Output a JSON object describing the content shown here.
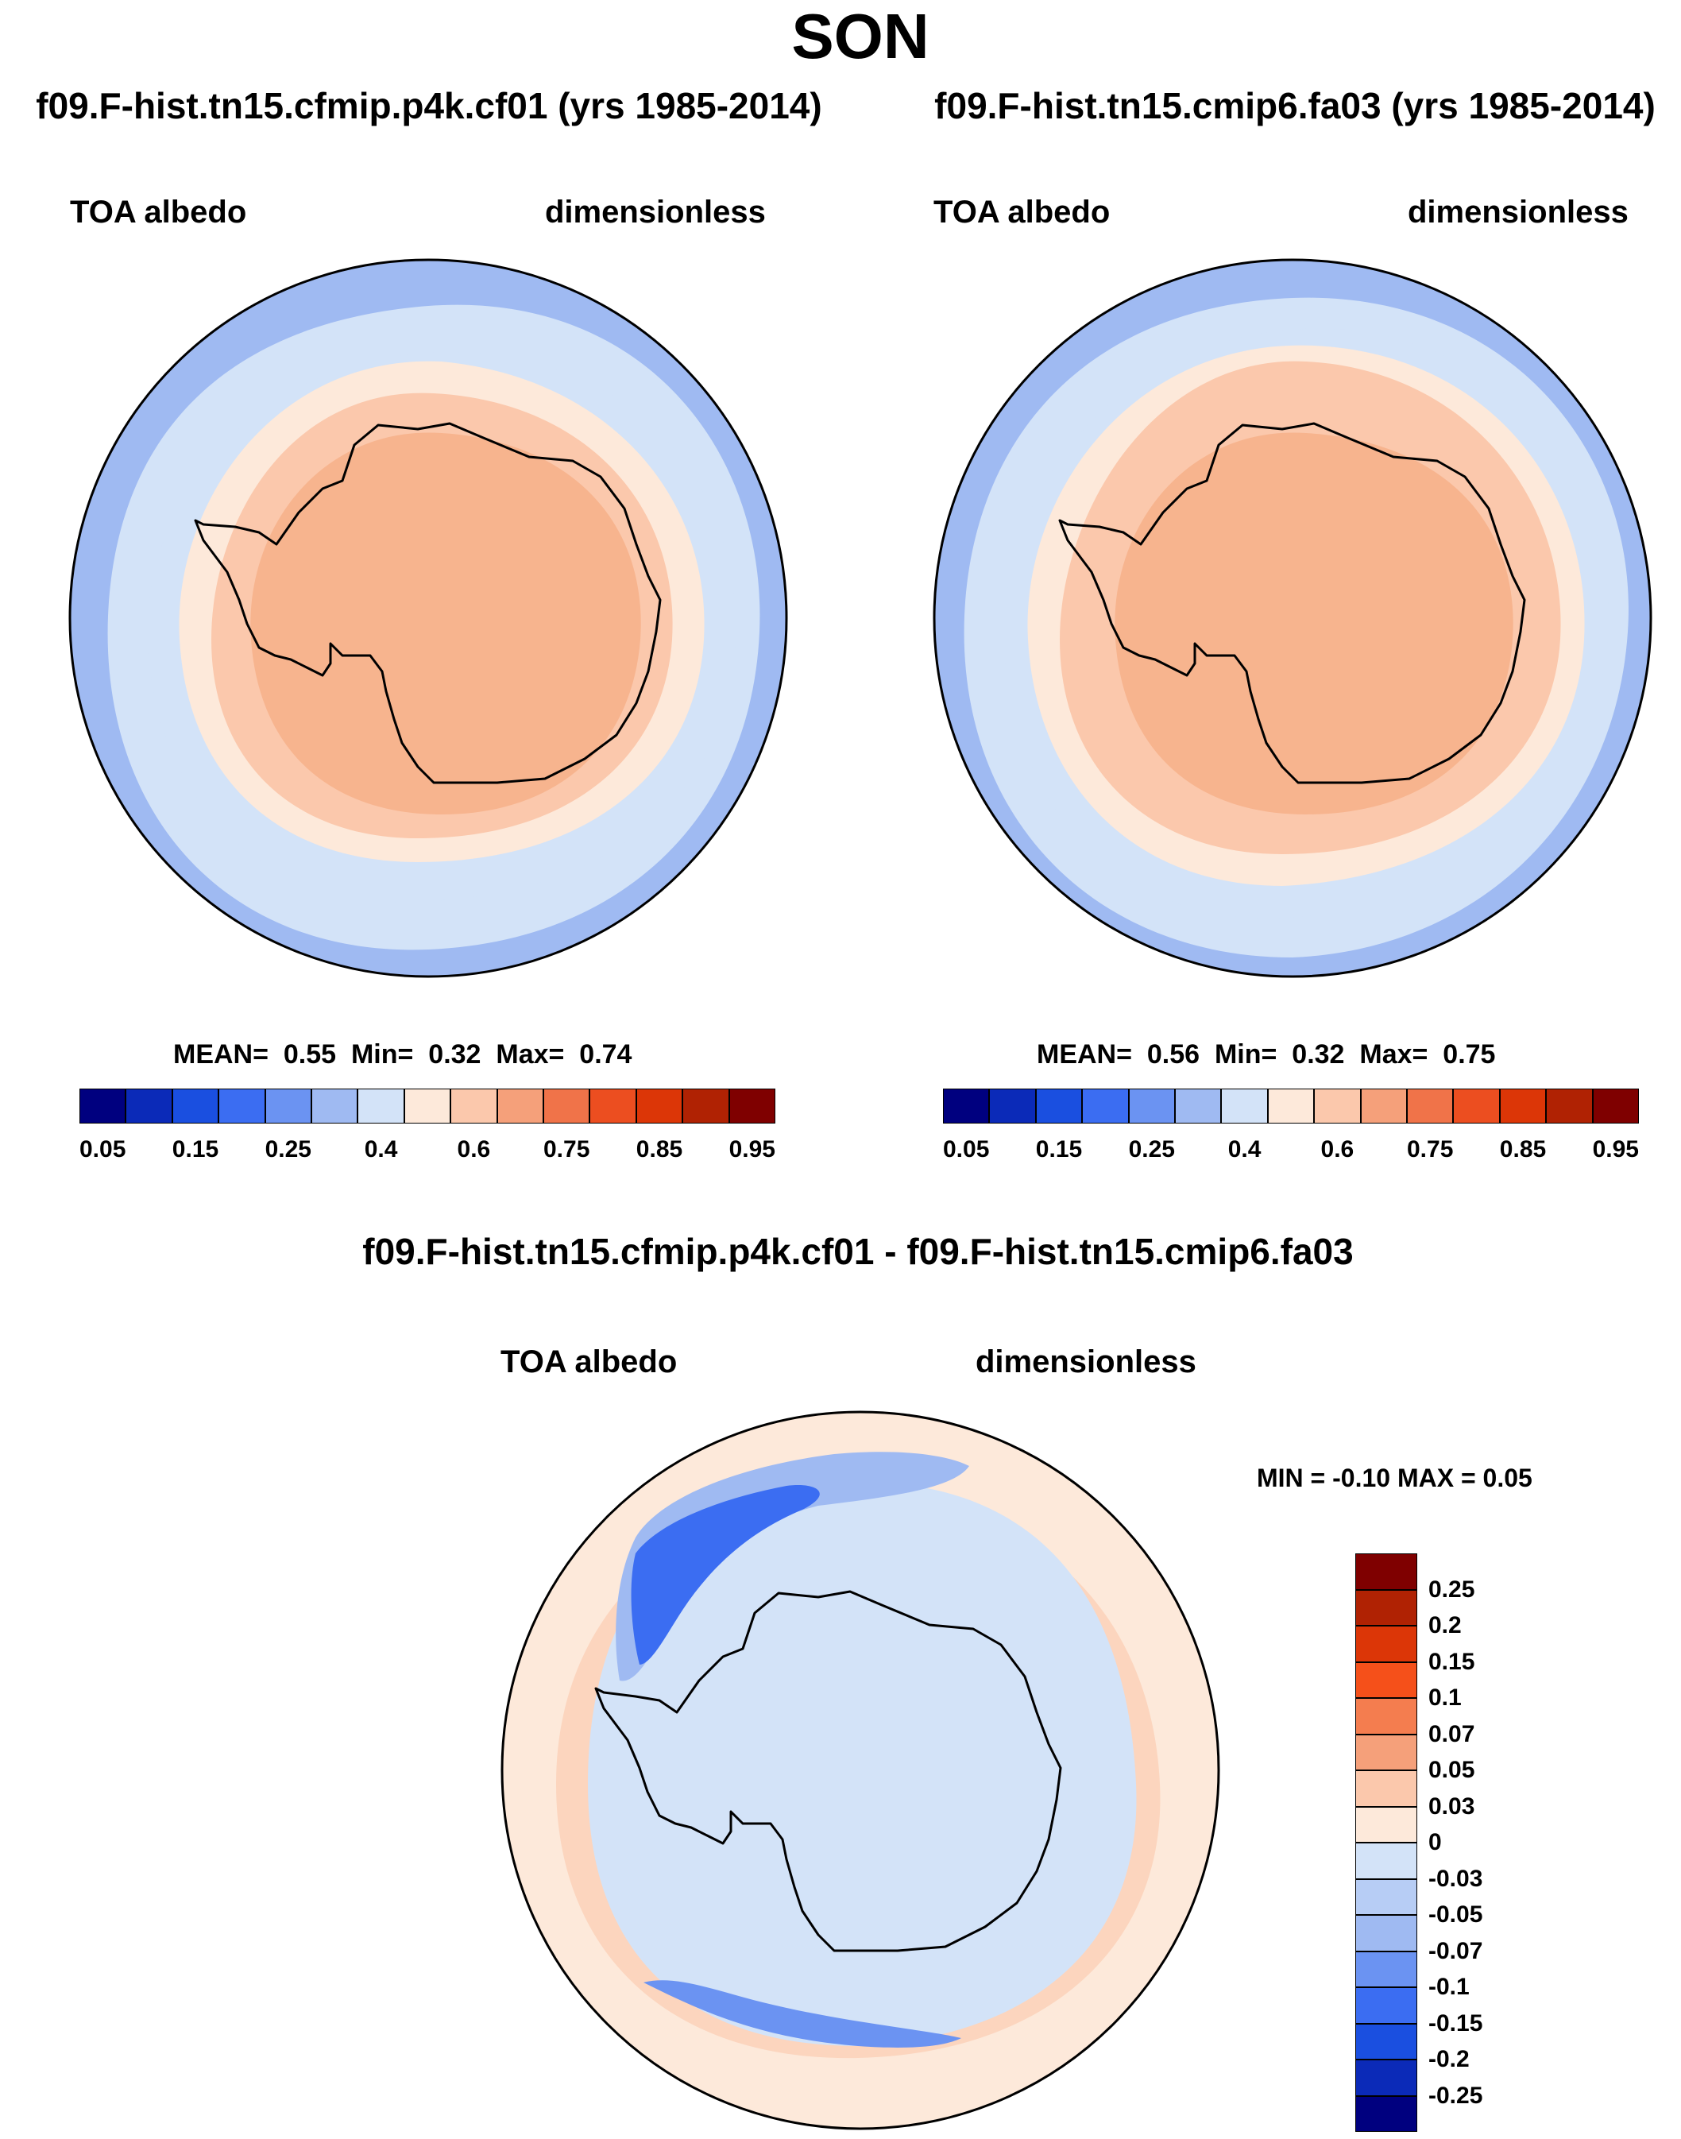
{
  "figure": {
    "title": "SON",
    "colors": {
      "coastline": "#000000",
      "outline": "#000000"
    }
  },
  "panels": [
    {
      "title": "f09.F-hist.tn15.cfmip.p4k.cf01 (yrs 1985-2014)",
      "variable": "TOA albedo",
      "units": "dimensionless",
      "stats": {
        "mean_label": "MEAN=",
        "mean": "0.55",
        "min_label": "Min=",
        "min": "0.32",
        "max_label": "Max=",
        "max": "0.74"
      }
    },
    {
      "title": "f09.F-hist.tn15.cmip6.fa03 (yrs 1985-2014)",
      "variable": "TOA albedo",
      "units": "dimensionless",
      "stats": {
        "mean_label": "MEAN=",
        "mean": "0.56",
        "min_label": "Min=",
        "min": "0.32",
        "max_label": "Max=",
        "max": "0.75"
      }
    }
  ],
  "difference": {
    "title": "f09.F-hist.tn15.cfmip.p4k.cf01 - f09.F-hist.tn15.cmip6.fa03",
    "variable": "TOA albedo",
    "units": "dimensionless",
    "stats_text": "MIN =  -0.10 MAX =   0.05"
  },
  "colorbar_main": {
    "colors": [
      "#00007f",
      "#0b2ab8",
      "#1a4fe0",
      "#3b6df2",
      "#6b93f2",
      "#9fbaf2",
      "#d3e3f8",
      "#fde9da",
      "#fbc8ac",
      "#f5a07a",
      "#f07349",
      "#ec4e20",
      "#dc3607",
      "#b02203",
      "#7f0000"
    ],
    "labels": [
      "0.05",
      "0.15",
      "0.25",
      "0.4",
      "0.6",
      "0.75",
      "0.85",
      "0.95"
    ]
  },
  "colorbar_diff": {
    "colors": [
      "#7f0000",
      "#b02203",
      "#dc3607",
      "#f5501a",
      "#f47d4f",
      "#f5a07a",
      "#fbc8ac",
      "#fde9da",
      "#d3e3f8",
      "#b7cdf5",
      "#9fbaf2",
      "#6b93f2",
      "#3b6df2",
      "#1a4fe0",
      "#0b2ab8",
      "#00007f"
    ],
    "labels": [
      "0.25",
      "0.2",
      "0.15",
      "0.1",
      "0.07",
      "0.05",
      "0.03",
      "0",
      "-0.03",
      "-0.05",
      "-0.07",
      "-0.1",
      "-0.15",
      "-0.2",
      "-0.25"
    ]
  },
  "chart_data": {
    "type": "polar-stereographic-map",
    "region": "Antarctica / Southern Ocean",
    "season": "SON",
    "fields": [
      {
        "name": "f09.F-hist.tn15.cfmip.p4k.cf01",
        "mean": 0.55,
        "min": 0.32,
        "max": 0.74
      },
      {
        "name": "f09.F-hist.tn15.cmip6.fa03",
        "mean": 0.56,
        "min": 0.32,
        "max": 0.75
      },
      {
        "name": "difference",
        "min": -0.1,
        "max": 0.05
      }
    ]
  }
}
